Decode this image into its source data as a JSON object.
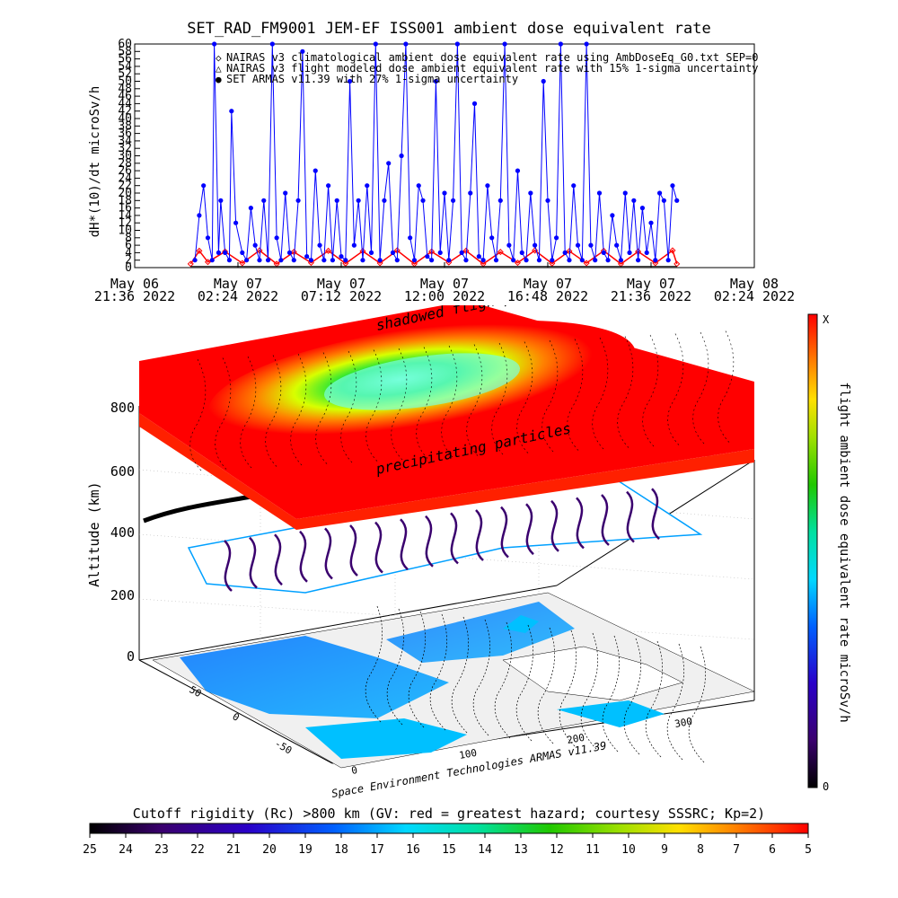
{
  "title": "SET_RAD_FM9001  JEM-EF ISS001 ambient dose equivalent rate",
  "chart_data": [
    {
      "type": "line",
      "title": "SET_RAD_FM9001  JEM-EF ISS001 ambient dose equivalent rate",
      "ylabel": "dH*(10)/dt microSv/h",
      "ylim": [
        0,
        60
      ],
      "y_ticks": [
        "0",
        "2",
        "4",
        "6",
        "8",
        "10",
        "12",
        "14",
        "16",
        "18",
        "20",
        "22",
        "24",
        "26",
        "28",
        "30",
        "32",
        "34",
        "36",
        "38",
        "40",
        "42",
        "44",
        "46",
        "48",
        "50",
        "52",
        "54",
        "56",
        "58",
        "60"
      ],
      "x_ticks": [
        {
          "line1": "May 06",
          "line2": "21:36 2022"
        },
        {
          "line1": "May 07",
          "line2": "02:24 2022"
        },
        {
          "line1": "May 07",
          "line2": "07:12 2022"
        },
        {
          "line1": "May 07",
          "line2": "12:00 2022"
        },
        {
          "line1": "May 07",
          "line2": "16:48 2022"
        },
        {
          "line1": "May 07",
          "line2": "21:36 2022"
        },
        {
          "line1": "May 08",
          "line2": "02:24 2022"
        }
      ],
      "x_hours_ticks": [
        0,
        4.8,
        9.6,
        14.4,
        19.2,
        24,
        28.8
      ],
      "legend": [
        {
          "marker": "◇",
          "color": "#ff0000",
          "label": "NAIRAS v3 climatological ambient dose equivalent rate using AmbDoseEq_G0.txt SEP=0"
        },
        {
          "marker": "△",
          "color": "#000000",
          "label": "NAIRAS v3 flight modeled dose ambient equivalent rate with 15% 1-sigma uncertainty"
        },
        {
          "marker": "●",
          "color": "#0000ff",
          "label": "SET ARMAS v11.39 with 27% 1-sigma uncertainty"
        }
      ],
      "series": [
        {
          "name": "NAIRAS v3 climatological ambient dose equivalent rate using AmbDoseEq_G0.txt SEP=0",
          "color": "#ff0000",
          "x_hours": [
            2.6,
            3.0,
            3.4,
            4.2,
            5.0,
            5.8,
            6.6,
            7.4,
            8.2,
            9.0,
            9.8,
            10.6,
            11.4,
            12.2,
            13.0,
            13.8,
            14.6,
            15.4,
            16.2,
            17.0,
            17.8,
            18.6,
            19.4,
            20.2,
            21.0,
            21.8,
            22.6,
            23.4,
            24.2,
            25.0,
            25.2
          ],
          "values": [
            1.0,
            4.5,
            1.5,
            4.3,
            1.2,
            4.6,
            1.0,
            4.2,
            1.3,
            4.5,
            1.1,
            4.4,
            1.2,
            4.6,
            1.0,
            4.3,
            1.4,
            4.5,
            1.0,
            4.2,
            1.3,
            4.6,
            1.1,
            4.4,
            1.2,
            4.5,
            1.0,
            4.3,
            1.2,
            4.6,
            1.0
          ]
        },
        {
          "name": "NAIRAS v3 flight modeled dose ambient equivalent rate with 15% 1-sigma uncertainty",
          "color": "#000000",
          "x_hours": [
            2.6,
            25.2
          ],
          "values": [
            0.3,
            0.3
          ]
        },
        {
          "name": "SET ARMAS v11.39 with 27% 1-sigma uncertainty",
          "color": "#0000ff",
          "x_hours": [
            2.8,
            3.0,
            3.2,
            3.4,
            3.6,
            3.7,
            3.9,
            4.0,
            4.2,
            4.4,
            4.5,
            4.7,
            5.0,
            5.2,
            5.4,
            5.6,
            5.8,
            6.0,
            6.2,
            6.4,
            6.6,
            6.8,
            7.0,
            7.2,
            7.4,
            7.6,
            7.8,
            8.0,
            8.2,
            8.4,
            8.6,
            8.8,
            9.0,
            9.2,
            9.4,
            9.6,
            9.8,
            10.0,
            10.2,
            10.4,
            10.6,
            10.8,
            11.0,
            11.2,
            11.4,
            11.6,
            11.8,
            12.0,
            12.2,
            12.4,
            12.6,
            12.8,
            13.0,
            13.2,
            13.4,
            13.6,
            13.8,
            14.0,
            14.2,
            14.4,
            14.6,
            14.8,
            15.0,
            15.2,
            15.4,
            15.6,
            15.8,
            16.0,
            16.2,
            16.4,
            16.6,
            16.8,
            17.0,
            17.2,
            17.4,
            17.6,
            17.8,
            18.0,
            18.2,
            18.4,
            18.6,
            18.8,
            19.0,
            19.2,
            19.4,
            19.6,
            19.8,
            20.0,
            20.2,
            20.4,
            20.6,
            20.8,
            21.0,
            21.2,
            21.4,
            21.6,
            21.8,
            22.0,
            22.2,
            22.4,
            22.6,
            22.8,
            23.0,
            23.2,
            23.4,
            23.6,
            23.8,
            24.0,
            24.2,
            24.4,
            24.6,
            24.8,
            25.0,
            25.2
          ],
          "values": [
            2,
            14,
            22,
            8,
            2,
            60,
            4,
            18,
            4,
            2,
            42,
            12,
            4,
            2,
            16,
            6,
            2,
            18,
            2,
            60,
            8,
            2,
            20,
            4,
            2,
            18,
            58,
            3,
            2,
            26,
            6,
            2,
            22,
            2,
            18,
            3,
            2,
            50,
            6,
            18,
            2,
            22,
            4,
            60,
            2,
            18,
            28,
            4,
            2,
            30,
            60,
            8,
            2,
            22,
            18,
            3,
            2,
            50,
            4,
            20,
            2,
            18,
            60,
            4,
            2,
            20,
            44,
            3,
            2,
            22,
            8,
            2,
            18,
            60,
            6,
            2,
            26,
            4,
            2,
            20,
            6,
            2,
            50,
            18,
            2,
            8,
            60,
            4,
            2,
            22,
            6,
            2,
            60,
            6,
            2,
            20,
            4,
            2,
            14,
            6,
            2,
            20,
            4,
            18,
            2,
            16,
            4,
            12,
            2,
            20,
            18,
            2,
            22,
            18
          ]
        }
      ]
    },
    {
      "type": "heatmap",
      "ylabel": "Altitude (km)",
      "z_ticks": [
        "0",
        "200",
        "400",
        "600",
        "800"
      ],
      "lat_ticks": [
        "50",
        "0",
        "-50"
      ],
      "lon_ticks": [
        "0",
        "100",
        "200",
        "300"
      ],
      "layer_labels": {
        "upper": "shadowed flightpath",
        "lower": "precipitating particles"
      },
      "credit": "Space Environment Technologies ARMAS v11.39",
      "colorbar_right": {
        "label": "flight ambient dose equivalent rate microSv/h",
        "top": "X",
        "bottom": "0"
      }
    },
    {
      "type": "heatmap",
      "colorbar_bottom": {
        "label": "Cutoff rigidity (Rc) >800 km (GV: red = greatest hazard; courtesy SSSRC; Kp=2)",
        "ticks": [
          "25",
          "24",
          "23",
          "22",
          "21",
          "20",
          "19",
          "18",
          "17",
          "16",
          "15",
          "14",
          "13",
          "12",
          "11",
          "10",
          "9",
          "8",
          "7",
          "6",
          "5"
        ]
      }
    }
  ]
}
